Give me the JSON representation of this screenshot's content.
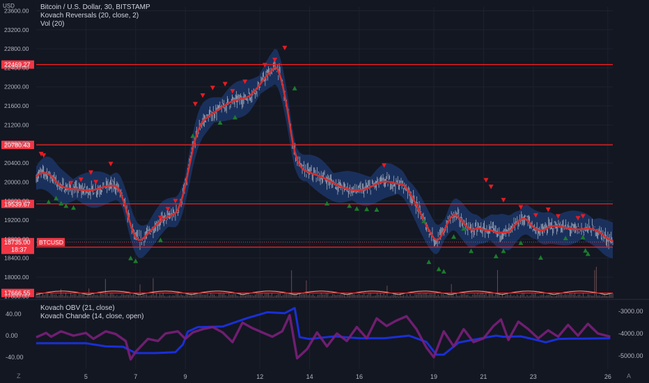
{
  "header": {
    "currency": "USD",
    "symbol_line": "Bitcoin / U.S. Dollar, 30, BITSTAMP",
    "indicator1": "Kovach Reversals (20, close, 2)",
    "indicator2": "Vol (20)",
    "lower_indicator1": "Kovach OBV (21, close)",
    "lower_indicator2": "Kovach Chande (14, close, open)"
  },
  "corners": {
    "bottom_left": "Z",
    "bottom_right": "A"
  },
  "colors": {
    "background": "#131722",
    "grid": "#1e222d",
    "candle": "#d1d4dc",
    "band": "#1c3566",
    "kovach_line": "#d32f2f",
    "level_line": "#f01e1e",
    "sell_marker": "#e51c23",
    "buy_marker": "#1b7d2c",
    "obv": "#1a2fd6",
    "chande": "#7b1f7a",
    "volume": "#a06e6e",
    "volume_ma": "#e0b9a8",
    "price_tag": "#f23645"
  },
  "chart_data": [
    {
      "type": "line",
      "name": "price_pane",
      "y_ticks": [
        23600,
        23200,
        22800,
        22400,
        22000,
        21600,
        21200,
        20800,
        20400,
        20000,
        19600,
        19200,
        18800,
        18400,
        18000,
        17600
      ],
      "y_tick_labels": [
        "23600.00",
        "23200.00",
        "22800.00",
        "22400.00",
        "22000.00",
        "21600.00",
        "21200.00",
        "20800.00",
        "20400.00",
        "20000.00",
        "19600.00",
        "19200.00",
        "18800.00",
        "18400.00",
        "18000.00",
        "17600.00"
      ],
      "ylim": [
        17560,
        23680
      ],
      "x_ticks": [
        {
          "pos": 5,
          "label": "5"
        },
        {
          "pos": 7,
          "label": "7"
        },
        {
          "pos": 9,
          "label": "9"
        },
        {
          "pos": 12,
          "label": "12"
        },
        {
          "pos": 14,
          "label": "14"
        },
        {
          "pos": 16,
          "label": "16"
        },
        {
          "pos": 19,
          "label": "19"
        },
        {
          "pos": 21,
          "label": "21"
        },
        {
          "pos": 23,
          "label": "23"
        },
        {
          "pos": 26,
          "label": "26"
        }
      ],
      "xlim": [
        3.0,
        26.2
      ],
      "horizontal_levels": [
        {
          "value": 22469.27,
          "label": "22469.27"
        },
        {
          "value": 20780.43,
          "label": "20780.43"
        },
        {
          "value": 19539.67,
          "label": "19539.67"
        },
        {
          "value": 18629.54,
          "label": "18629.54"
        },
        {
          "value": 17666.55,
          "label": "17666.55"
        }
      ],
      "last_price": {
        "value": 18735.0,
        "label": "18735.00",
        "countdown": "18:37",
        "symbol": "BTCUSD"
      },
      "price_path": {
        "x": [
          3.0,
          3.4,
          3.7,
          4.2,
          4.7,
          5.2,
          5.7,
          6.2,
          6.5,
          6.8,
          7.0,
          7.4,
          7.8,
          8.3,
          8.6,
          8.9,
          9.1,
          9.4,
          9.8,
          10.3,
          10.8,
          11.3,
          11.7,
          12.1,
          12.5,
          12.9,
          13.1,
          13.3,
          13.5,
          13.8,
          14.2,
          14.6,
          15.0,
          15.5,
          16.0,
          16.5,
          17.0,
          17.5,
          18.0,
          18.3,
          18.7,
          19.0,
          19.3,
          19.6,
          19.9,
          20.3,
          20.7,
          21.0,
          21.3,
          21.6,
          21.8,
          22.1,
          22.5,
          22.9,
          23.2,
          23.5,
          23.8,
          24.2,
          24.6,
          25.0,
          25.4,
          25.8,
          26.1
        ],
        "y": [
          20050,
          20350,
          20000,
          19850,
          19850,
          19800,
          19900,
          19950,
          19850,
          18950,
          18650,
          18850,
          19100,
          19300,
          19300,
          19450,
          20200,
          21100,
          21350,
          21500,
          21700,
          21750,
          21800,
          22150,
          22350,
          22600,
          21400,
          20700,
          20300,
          20250,
          20150,
          20100,
          19950,
          19850,
          19800,
          19900,
          20050,
          19950,
          19950,
          19400,
          19200,
          18650,
          18700,
          19350,
          19400,
          19000,
          18950,
          19150,
          18800,
          19100,
          18850,
          18900,
          19350,
          19150,
          18850,
          19050,
          19100,
          19050,
          19000,
          19000,
          19050,
          18900,
          18735
        ]
      },
      "band_width": 300,
      "sell_markers": [
        {
          "x": 3.2,
          "y": 20590
        },
        {
          "x": 3.3,
          "y": 20560
        },
        {
          "x": 4.4,
          "y": 19980
        },
        {
          "x": 4.8,
          "y": 20050
        },
        {
          "x": 5.2,
          "y": 20200
        },
        {
          "x": 5.4,
          "y": 20000
        },
        {
          "x": 6.0,
          "y": 20380
        },
        {
          "x": 8.0,
          "y": 19250
        },
        {
          "x": 8.3,
          "y": 19430
        },
        {
          "x": 8.6,
          "y": 19600
        },
        {
          "x": 9.4,
          "y": 21640
        },
        {
          "x": 9.7,
          "y": 21820
        },
        {
          "x": 10.1,
          "y": 21980
        },
        {
          "x": 10.6,
          "y": 22060
        },
        {
          "x": 10.9,
          "y": 21910
        },
        {
          "x": 11.4,
          "y": 22110
        },
        {
          "x": 12.2,
          "y": 22460
        },
        {
          "x": 12.6,
          "y": 22570
        },
        {
          "x": 13.0,
          "y": 22820
        },
        {
          "x": 17.0,
          "y": 20350
        },
        {
          "x": 21.1,
          "y": 20040
        },
        {
          "x": 21.3,
          "y": 19900
        },
        {
          "x": 21.8,
          "y": 19620
        },
        {
          "x": 22.5,
          "y": 19470
        },
        {
          "x": 23.1,
          "y": 19300
        },
        {
          "x": 23.6,
          "y": 19420
        },
        {
          "x": 24.0,
          "y": 19280
        },
        {
          "x": 24.8,
          "y": 19240
        },
        {
          "x": 25.0,
          "y": 19280
        }
      ],
      "buy_markers": [
        {
          "x": 3.5,
          "y": 19580
        },
        {
          "x": 3.8,
          "y": 19660
        },
        {
          "x": 4.0,
          "y": 19550
        },
        {
          "x": 4.2,
          "y": 19500
        },
        {
          "x": 4.5,
          "y": 19460
        },
        {
          "x": 6.8,
          "y": 18400
        },
        {
          "x": 7.0,
          "y": 18340
        },
        {
          "x": 8.0,
          "y": 18780
        },
        {
          "x": 9.3,
          "y": 20970
        },
        {
          "x": 10.4,
          "y": 21250
        },
        {
          "x": 11.0,
          "y": 21360
        },
        {
          "x": 13.4,
          "y": 21970
        },
        {
          "x": 14.7,
          "y": 19550
        },
        {
          "x": 15.6,
          "y": 19500
        },
        {
          "x": 15.9,
          "y": 19440
        },
        {
          "x": 16.3,
          "y": 19430
        },
        {
          "x": 16.7,
          "y": 19420
        },
        {
          "x": 18.6,
          "y": 19180
        },
        {
          "x": 18.8,
          "y": 18320
        },
        {
          "x": 19.2,
          "y": 18170
        },
        {
          "x": 19.4,
          "y": 18120
        },
        {
          "x": 19.8,
          "y": 18850
        },
        {
          "x": 20.2,
          "y": 19020
        },
        {
          "x": 20.5,
          "y": 18550
        },
        {
          "x": 21.5,
          "y": 18440
        },
        {
          "x": 21.8,
          "y": 18550
        },
        {
          "x": 22.5,
          "y": 18720
        },
        {
          "x": 23.3,
          "y": 18410
        },
        {
          "x": 24.3,
          "y": 18820
        },
        {
          "x": 25.0,
          "y": 18840
        },
        {
          "x": 25.1,
          "y": 18560
        },
        {
          "x": 25.2,
          "y": 18490
        }
      ]
    },
    {
      "type": "line",
      "name": "oscillator_pane",
      "left_ticks": [
        {
          "value": 40,
          "label": "40.00"
        },
        {
          "value": 0,
          "label": "0.00"
        },
        {
          "value": -40,
          "label": "-40.00"
        }
      ],
      "left_ylim": [
        -62,
        62
      ],
      "right_ticks": [
        {
          "value": -3000,
          "label": "-3000.00"
        },
        {
          "value": -4000,
          "label": "-4000.00"
        },
        {
          "value": -5000,
          "label": "-5000.00"
        }
      ],
      "right_ylim": [
        -5600,
        -2600
      ],
      "series": [
        {
          "name": "Kovach OBV",
          "axis": "right",
          "x": [
            3.0,
            4.0,
            5.0,
            5.8,
            6.5,
            7.0,
            7.8,
            8.6,
            8.9,
            9.1,
            9.5,
            10.5,
            11.5,
            12.3,
            13.0,
            13.4,
            13.6,
            14.0,
            15.0,
            16.0,
            17.0,
            18.0,
            18.7,
            19.1,
            19.4,
            20.0,
            21.0,
            21.5,
            21.8,
            22.5,
            23.0,
            23.5,
            24.0,
            24.5,
            25.0,
            26.1
          ],
          "values": [
            -4440,
            -4440,
            -4440,
            -4580,
            -4600,
            -4880,
            -4880,
            -4840,
            -4500,
            -3920,
            -3720,
            -3690,
            -3310,
            -3050,
            -3090,
            -2860,
            -4170,
            -4250,
            -4130,
            -4220,
            -4220,
            -4100,
            -4380,
            -4950,
            -4950,
            -4410,
            -4200,
            -4100,
            -4150,
            -4130,
            -4260,
            -4400,
            -4250,
            -4230,
            -4230,
            -4220
          ]
        },
        {
          "name": "Kovach Chande",
          "axis": "left",
          "x": [
            3.0,
            3.4,
            3.6,
            4.0,
            4.5,
            5.0,
            5.3,
            5.8,
            6.2,
            6.6,
            6.8,
            7.0,
            7.5,
            7.9,
            8.2,
            8.7,
            9.0,
            9.3,
            9.7,
            10.1,
            10.5,
            10.9,
            11.3,
            11.7,
            12.1,
            12.5,
            12.9,
            13.2,
            13.5,
            13.9,
            14.3,
            14.7,
            15.1,
            15.5,
            15.9,
            16.3,
            16.7,
            17.1,
            17.5,
            17.9,
            18.3,
            18.7,
            19.0,
            19.4,
            19.8,
            20.2,
            20.6,
            21.0,
            21.4,
            21.7,
            22.0,
            22.4,
            22.8,
            23.2,
            23.6,
            24.0,
            24.4,
            24.8,
            25.2,
            25.6,
            26.1
          ],
          "values": [
            -3,
            5,
            -2,
            8,
            0,
            5,
            -6,
            8,
            3,
            -10,
            -44,
            -30,
            -6,
            -10,
            4,
            8,
            -6,
            6,
            12,
            16,
            6,
            -12,
            24,
            14,
            6,
            -2,
            8,
            38,
            -42,
            -25,
            6,
            -20,
            4,
            -10,
            16,
            -5,
            32,
            18,
            28,
            36,
            12,
            -22,
            -40,
            8,
            -20,
            12,
            -12,
            -5,
            18,
            30,
            -8,
            26,
            12,
            -5,
            10,
            -2,
            20,
            0,
            22,
            4,
            -2
          ]
        }
      ]
    }
  ]
}
